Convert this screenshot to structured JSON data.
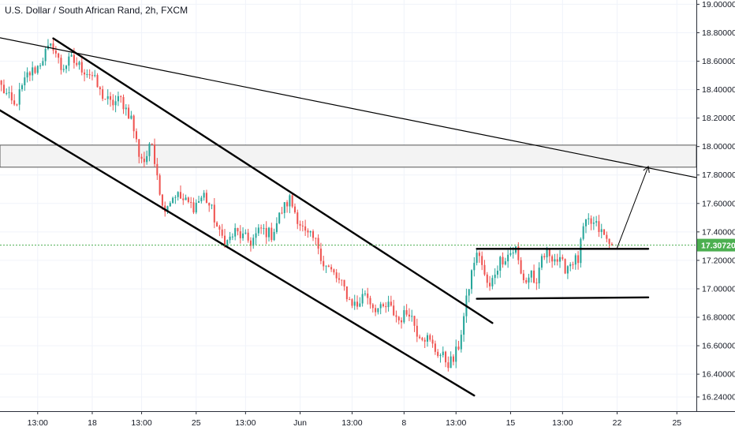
{
  "chart_data": {
    "type": "candlestick",
    "title": "U.S. Dollar / South African Rand, 2h, FXCM",
    "symbol": "USD/ZAR",
    "timeframe": "2h",
    "broker": "FXCM",
    "ylim": [
      16.14,
      19.03
    ],
    "y_ticks": [
      "19.00000",
      "18.80000",
      "18.60000",
      "18.40000",
      "18.20000",
      "18.00000",
      "17.80000",
      "17.60000",
      "17.40000",
      "17.20000",
      "17.00000",
      "16.80000",
      "16.60000",
      "16.40000",
      "16.24000"
    ],
    "y_tick_values": [
      19.0,
      18.8,
      18.6,
      18.4,
      18.2,
      18.0,
      17.8,
      17.6,
      17.4,
      17.2,
      17.0,
      16.8,
      16.6,
      16.4,
      16.24
    ],
    "x_ticks": [
      {
        "label": "13:00",
        "bar": 14
      },
      {
        "label": "18",
        "bar": 35
      },
      {
        "label": "13:00",
        "bar": 54
      },
      {
        "label": "25",
        "bar": 75
      },
      {
        "label": "13:00",
        "bar": 94
      },
      {
        "label": "Jun",
        "bar": 115
      },
      {
        "label": "13:00",
        "bar": 135
      },
      {
        "label": "8",
        "bar": 155
      },
      {
        "label": "13:00",
        "bar": 175
      },
      {
        "label": "15",
        "bar": 196
      },
      {
        "label": "13:00",
        "bar": 216
      },
      {
        "label": "22",
        "bar": 237
      },
      {
        "label": "25",
        "bar": 260
      }
    ],
    "bar_count_axis": 268,
    "current_price": "17.30720",
    "current_price_value": 17.3072,
    "colors": {
      "up": "#26a69a",
      "down": "#ef5350",
      "price_line": "#4caf50",
      "drawing": "#000000",
      "grid": "#f0f3fa"
    },
    "anchors": [
      [
        0,
        18.42
      ],
      [
        5,
        18.28
      ],
      [
        10,
        18.5
      ],
      [
        14,
        18.56
      ],
      [
        17,
        18.66
      ],
      [
        20,
        18.71
      ],
      [
        23,
        18.55
      ],
      [
        27,
        18.61
      ],
      [
        31,
        18.55
      ],
      [
        35,
        18.5
      ],
      [
        38,
        18.38
      ],
      [
        42,
        18.3
      ],
      [
        46,
        18.33
      ],
      [
        50,
        18.2
      ],
      [
        53,
        17.95
      ],
      [
        55,
        17.9
      ],
      [
        58,
        18.02
      ],
      [
        60,
        17.82
      ],
      [
        62,
        17.57
      ],
      [
        64,
        17.6
      ],
      [
        67,
        17.67
      ],
      [
        70,
        17.62
      ],
      [
        74,
        17.58
      ],
      [
        78,
        17.66
      ],
      [
        81,
        17.55
      ],
      [
        84,
        17.38
      ],
      [
        87,
        17.33
      ],
      [
        90,
        17.4
      ],
      [
        94,
        17.35
      ],
      [
        96,
        17.33
      ],
      [
        100,
        17.42
      ],
      [
        104,
        17.38
      ],
      [
        108,
        17.55
      ],
      [
        111,
        17.63
      ],
      [
        114,
        17.5
      ],
      [
        117,
        17.38
      ],
      [
        120,
        17.35
      ],
      [
        122,
        17.3
      ],
      [
        124,
        17.18
      ],
      [
        128,
        17.1
      ],
      [
        132,
        17.0
      ],
      [
        134,
        16.92
      ],
      [
        137,
        16.88
      ],
      [
        140,
        16.98
      ],
      [
        143,
        16.88
      ],
      [
        146,
        16.85
      ],
      [
        149,
        16.88
      ],
      [
        153,
        16.78
      ],
      [
        157,
        16.85
      ],
      [
        160,
        16.7
      ],
      [
        164,
        16.65
      ],
      [
        167,
        16.57
      ],
      [
        170,
        16.52
      ],
      [
        172,
        16.48
      ],
      [
        174,
        16.5
      ],
      [
        176,
        16.6
      ],
      [
        178,
        16.8
      ],
      [
        180,
        17.02
      ],
      [
        182,
        17.2
      ],
      [
        184,
        17.25
      ],
      [
        186,
        17.08
      ],
      [
        188,
        17.0
      ],
      [
        190,
        17.12
      ],
      [
        192,
        17.2
      ],
      [
        195,
        17.24
      ],
      [
        198,
        17.28
      ],
      [
        200,
        17.1
      ],
      [
        202,
        17.05
      ],
      [
        204,
        17.12
      ],
      [
        206,
        17.0
      ],
      [
        208,
        17.22
      ],
      [
        211,
        17.25
      ],
      [
        214,
        17.2
      ],
      [
        217,
        17.15
      ],
      [
        220,
        17.2
      ],
      [
        222,
        17.2
      ],
      [
        224,
        17.42
      ],
      [
        226,
        17.47
      ],
      [
        229,
        17.44
      ],
      [
        232,
        17.37
      ],
      [
        234,
        17.31
      ],
      [
        235,
        17.3072
      ]
    ],
    "drawings": [
      {
        "kind": "line",
        "name": "long-resistance-trendline",
        "from": [
          -2,
          18.77
        ],
        "to": [
          268,
          17.78
        ]
      },
      {
        "kind": "line",
        "name": "channel-upper-line",
        "from": [
          20,
          18.76
        ],
        "to": [
          189,
          16.76
        ]
      },
      {
        "kind": "line",
        "name": "channel-lower-line",
        "from": [
          -1,
          18.26
        ],
        "to": [
          182,
          16.25
        ]
      },
      {
        "kind": "line",
        "name": "range-top-line",
        "from": [
          183,
          17.281
        ],
        "to": [
          249,
          17.281
        ]
      },
      {
        "kind": "line",
        "name": "range-bottom-line",
        "from": [
          183,
          16.93
        ],
        "to": [
          249,
          16.94
        ]
      },
      {
        "kind": "arrow",
        "name": "projection-arrow",
        "from": [
          237,
          17.287
        ],
        "to": [
          249,
          17.86
        ]
      }
    ],
    "zone": {
      "name": "resistance-zone",
      "y_top": 18.01,
      "y_bottom": 17.855
    }
  }
}
